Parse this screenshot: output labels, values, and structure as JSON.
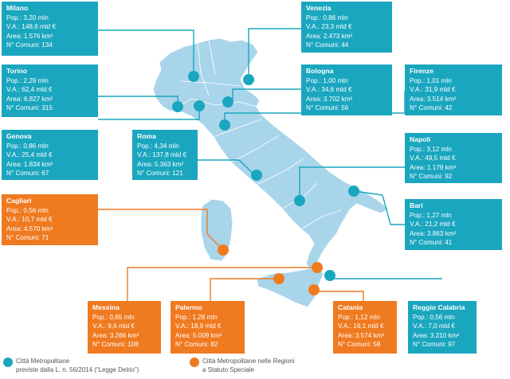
{
  "colors": {
    "metro": "#1aa6bf",
    "special": "#ef7a20",
    "land": "#a9d5ea",
    "border": "#ffffff"
  },
  "cities": [
    {
      "id": "milano",
      "name": "Milano",
      "pop": "Pop.: 3,20 mln",
      "va": "V.A.: 148,6 mld €",
      "area": "Area: 1.576 km²",
      "comuni": "N° Comuni: 134",
      "type": "metro"
    },
    {
      "id": "venezia",
      "name": "Venezia",
      "pop": "Pop.: 0,86 mln",
      "va": "V.A.: 23,3 mld €",
      "area": "Area: 2.473 km²",
      "comuni": "N° Comuni: 44",
      "type": "metro"
    },
    {
      "id": "torino",
      "name": "Torino",
      "pop": "Pop.: 2,29 mln",
      "va": "V.A.: 62,4 mld €",
      "area": "Area: 6.827 km²",
      "comuni": "N° Comuni: 315",
      "type": "metro"
    },
    {
      "id": "bologna",
      "name": "Bologna",
      "pop": "Pop.: 1,00 mln",
      "va": "V.A.: 34,6 mld €",
      "area": "Area: 3.702 km²",
      "comuni": "N° Comuni: 56",
      "type": "metro"
    },
    {
      "id": "firenze",
      "name": "Firenze",
      "pop": "Pop.: 1,01 mln",
      "va": "V.A.: 31,9 mld €",
      "area": "Area: 3.514 km²",
      "comuni": "N° Comuni: 42",
      "type": "metro"
    },
    {
      "id": "genova",
      "name": "Genova",
      "pop": "Pop.: 0,86 mln",
      "va": "V.A.: 25,4 mld €",
      "area": "Area: 1.834 km²",
      "comuni": "N° Comuni: 67",
      "type": "metro"
    },
    {
      "id": "roma",
      "name": "Roma",
      "pop": "Pop.: 4,34 mln",
      "va": "V.A.: 137,8 mld €",
      "area": "Area: 5.363 km²",
      "comuni": "N° Comuni: 121",
      "type": "metro"
    },
    {
      "id": "napoli",
      "name": "Napoli",
      "pop": "Pop.: 3,12 mln",
      "va": "V.A.: 49,5 mld €",
      "area": "Area: 1.179 km²",
      "comuni": "N° Comuni: 92",
      "type": "metro"
    },
    {
      "id": "cagliari",
      "name": "Cagliari",
      "pop": "Pop.: 0,56 mln",
      "va": "V.A.: 10,7 mld €",
      "area": "Area: 4.570 km²",
      "comuni": "N° Comuni: 71",
      "type": "special"
    },
    {
      "id": "bari",
      "name": "Bari",
      "pop": "Pop.: 1,27 mln",
      "va": "V.A.: 21,2 mld €",
      "area": "Area: 3.863 km²",
      "comuni": "N° Comuni: 41",
      "type": "metro"
    },
    {
      "id": "messina",
      "name": "Messina",
      "pop": "Pop.: 0,65 mln",
      "va": "V.A.: 9,6 mld €",
      "area": "Area: 3.266 km²",
      "comuni": "N° Comuni: 108",
      "type": "special"
    },
    {
      "id": "palermo",
      "name": "Palermo",
      "pop": "Pop.: 1,28 mln",
      "va": "V.A.: 18,9 mld €",
      "area": "Area: 5.009 km²",
      "comuni": "N° Comuni: 82",
      "type": "special"
    },
    {
      "id": "catania",
      "name": "Catania",
      "pop": "Pop.: 1,12 mln",
      "va": "V.A.: 16,1 mld €",
      "area": "Area: 3.574 km²",
      "comuni": "N° Comuni: 58",
      "type": "special"
    },
    {
      "id": "reggio",
      "name": "Reggio Calabria",
      "pop": "Pop.: 0,56 mln",
      "va": "V.A.: 7,0 mld €",
      "area": "Area: 3.210 km²",
      "comuni": "N° Comuni: 97",
      "type": "metro"
    }
  ],
  "legend": {
    "metro_line1": "Città Metropolitane",
    "metro_line2": "previste dalla L. n. 56/2014 (“Legge Delrio”)",
    "special_line1": "Città Metropolitane nelle Regioni",
    "special_line2": "a Statuto Speciale"
  }
}
